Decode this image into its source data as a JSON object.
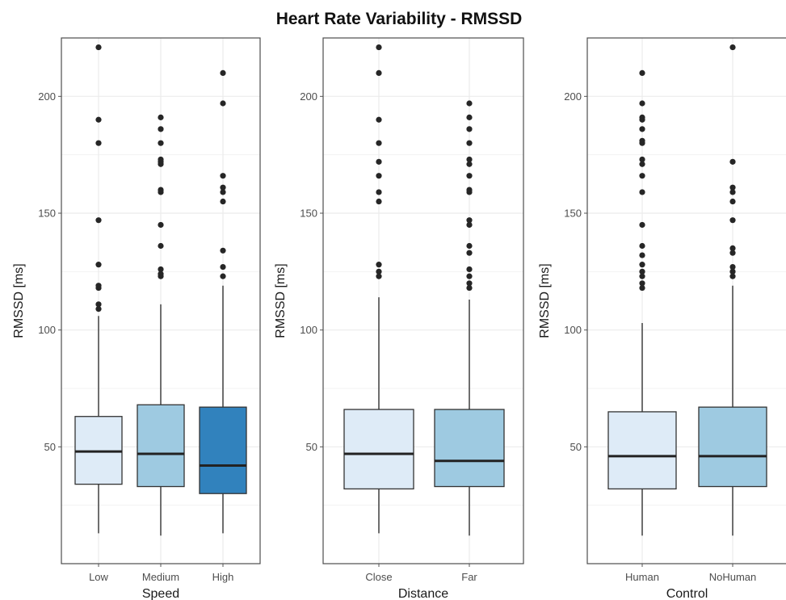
{
  "title": "Heart Rate Variability - RMSSD",
  "colors": {
    "light": "#deebf7",
    "mid": "#9ecae1",
    "dark": "#3182bd",
    "outlier": "#262626",
    "line": "#333333",
    "grid": "#ebebeb",
    "panel_border": "#4d4d4d"
  },
  "chart_data": [
    {
      "type": "box",
      "xlabel": "Speed",
      "ylabel": "RMSSD [ms]",
      "ylim": [
        0,
        225
      ],
      "yticks": [
        50,
        100,
        150,
        200
      ],
      "categories": [
        "Low",
        "Medium",
        "High"
      ],
      "fills": [
        "light",
        "mid",
        "dark"
      ],
      "boxes": [
        {
          "min": 13,
          "q1": 34,
          "median": 48,
          "q3": 63,
          "max": 106,
          "outliers": [
            109,
            111,
            118,
            119,
            128,
            147,
            180,
            190,
            221
          ]
        },
        {
          "min": 12,
          "q1": 33,
          "median": 47,
          "q3": 68,
          "max": 111,
          "outliers": [
            123,
            124,
            126,
            136,
            145,
            159,
            160,
            171,
            172,
            173,
            180,
            186,
            191
          ]
        },
        {
          "min": 13,
          "q1": 30,
          "median": 42,
          "q3": 67,
          "max": 119,
          "outliers": [
            123,
            127,
            134,
            155,
            159,
            161,
            166,
            197,
            210
          ]
        }
      ]
    },
    {
      "type": "box",
      "xlabel": "Distance",
      "ylabel": "RMSSD [ms]",
      "ylim": [
        0,
        225
      ],
      "yticks": [
        50,
        100,
        150,
        200
      ],
      "categories": [
        "Close",
        "Far"
      ],
      "fills": [
        "light",
        "mid"
      ],
      "boxes": [
        {
          "min": 13,
          "q1": 32,
          "median": 47,
          "q3": 66,
          "max": 114,
          "outliers": [
            123,
            125,
            128,
            155,
            159,
            166,
            172,
            180,
            190,
            210,
            221
          ]
        },
        {
          "min": 12,
          "q1": 33,
          "median": 44,
          "q3": 66,
          "max": 113,
          "outliers": [
            118,
            120,
            123,
            126,
            133,
            136,
            145,
            147,
            159,
            160,
            166,
            171,
            173,
            180,
            186,
            191,
            197
          ]
        }
      ]
    },
    {
      "type": "box",
      "xlabel": "Control",
      "ylabel": "RMSSD [ms]",
      "ylim": [
        0,
        225
      ],
      "yticks": [
        50,
        100,
        150,
        200
      ],
      "categories": [
        "Human",
        "NoHuman"
      ],
      "fills": [
        "light",
        "mid"
      ],
      "boxes": [
        {
          "min": 12,
          "q1": 32,
          "median": 46,
          "q3": 65,
          "max": 103,
          "outliers": [
            118,
            120,
            123,
            125,
            128,
            132,
            136,
            145,
            159,
            166,
            171,
            173,
            180,
            181,
            186,
            190,
            191,
            197,
            210
          ]
        },
        {
          "min": 12,
          "q1": 33,
          "median": 46,
          "q3": 67,
          "max": 119,
          "outliers": [
            123,
            125,
            127,
            133,
            135,
            147,
            155,
            159,
            161,
            172,
            221
          ]
        }
      ]
    }
  ]
}
